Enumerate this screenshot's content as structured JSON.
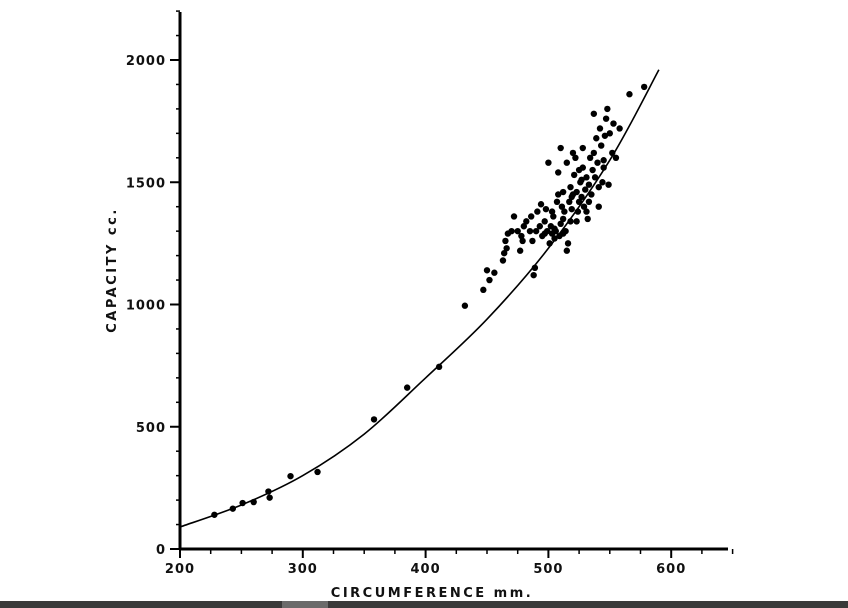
{
  "chart_data": {
    "type": "scatter",
    "xlabel": "CIRCUMFERENCE mm.",
    "ylabel": "CAPACITY cc.",
    "xlim": [
      200,
      650
    ],
    "ylim": [
      0,
      2200
    ],
    "x_ticks": [
      200,
      300,
      400,
      500,
      600
    ],
    "y_ticks": [
      0,
      500,
      1000,
      1500,
      2000
    ],
    "grid": false,
    "curve": {
      "x": [
        200,
        250,
        300,
        350,
        400,
        450,
        500,
        550,
        590
      ],
      "y": [
        90,
        180,
        300,
        470,
        700,
        940,
        1230,
        1590,
        1960
      ]
    },
    "points": [
      [
        228,
        140
      ],
      [
        243,
        165
      ],
      [
        251,
        188
      ],
      [
        260,
        192
      ],
      [
        272,
        235
      ],
      [
        273,
        210
      ],
      [
        290,
        298
      ],
      [
        312,
        315
      ],
      [
        358,
        530
      ],
      [
        385,
        660
      ],
      [
        411,
        745
      ],
      [
        432,
        995
      ],
      [
        447,
        1060
      ],
      [
        450,
        1140
      ],
      [
        452,
        1100
      ],
      [
        456,
        1130
      ],
      [
        463,
        1180
      ],
      [
        464,
        1210
      ],
      [
        465,
        1260
      ],
      [
        466,
        1230
      ],
      [
        467,
        1290
      ],
      [
        470,
        1300
      ],
      [
        472,
        1360
      ],
      [
        475,
        1300
      ],
      [
        477,
        1220
      ],
      [
        479,
        1260
      ],
      [
        480,
        1320
      ],
      [
        482,
        1340
      ],
      [
        485,
        1300
      ],
      [
        487,
        1260
      ],
      [
        488,
        1120
      ],
      [
        489,
        1150
      ],
      [
        490,
        1300
      ],
      [
        491,
        1380
      ],
      [
        494,
        1410
      ],
      [
        495,
        1280
      ],
      [
        497,
        1340
      ],
      [
        498,
        1390
      ],
      [
        499,
        1300
      ],
      [
        500,
        1580
      ],
      [
        501,
        1250
      ],
      [
        502,
        1320
      ],
      [
        503,
        1290
      ],
      [
        504,
        1360
      ],
      [
        505,
        1270
      ],
      [
        506,
        1300
      ],
      [
        507,
        1420
      ],
      [
        508,
        1450
      ],
      [
        509,
        1280
      ],
      [
        510,
        1330
      ],
      [
        511,
        1400
      ],
      [
        512,
        1350
      ],
      [
        513,
        1380
      ],
      [
        514,
        1300
      ],
      [
        515,
        1220
      ],
      [
        516,
        1250
      ],
      [
        517,
        1420
      ],
      [
        518,
        1480
      ],
      [
        519,
        1390
      ],
      [
        520,
        1450
      ],
      [
        521,
        1530
      ],
      [
        522,
        1600
      ],
      [
        523,
        1460
      ],
      [
        524,
        1380
      ],
      [
        525,
        1420
      ],
      [
        526,
        1500
      ],
      [
        527,
        1440
      ],
      [
        528,
        1560
      ],
      [
        529,
        1400
      ],
      [
        530,
        1470
      ],
      [
        531,
        1520
      ],
      [
        532,
        1350
      ],
      [
        533,
        1490
      ],
      [
        534,
        1600
      ],
      [
        535,
        1450
      ],
      [
        536,
        1550
      ],
      [
        537,
        1620
      ],
      [
        538,
        1520
      ],
      [
        539,
        1680
      ],
      [
        540,
        1580
      ],
      [
        541,
        1480
      ],
      [
        542,
        1720
      ],
      [
        543,
        1650
      ],
      [
        544,
        1500
      ],
      [
        545,
        1590
      ],
      [
        546,
        1690
      ],
      [
        547,
        1760
      ],
      [
        548,
        1800
      ],
      [
        550,
        1700
      ],
      [
        552,
        1620
      ],
      [
        553,
        1740
      ],
      [
        555,
        1600
      ],
      [
        558,
        1720
      ],
      [
        566,
        1860
      ],
      [
        578,
        1890
      ],
      [
        510,
        1640
      ],
      [
        515,
        1580
      ],
      [
        520,
        1620
      ],
      [
        528,
        1640
      ],
      [
        523,
        1340
      ],
      [
        508,
        1540
      ],
      [
        537,
        1780
      ],
      [
        541,
        1400
      ],
      [
        519,
        1440
      ],
      [
        531,
        1380
      ],
      [
        512,
        1460
      ],
      [
        503,
        1380
      ],
      [
        497,
        1290
      ],
      [
        493,
        1320
      ],
      [
        486,
        1360
      ],
      [
        478,
        1280
      ],
      [
        525,
        1550
      ],
      [
        533,
        1420
      ],
      [
        545,
        1560
      ],
      [
        549,
        1490
      ],
      [
        527,
        1510
      ],
      [
        505,
        1310
      ],
      [
        512,
        1290
      ],
      [
        518,
        1340
      ]
    ]
  }
}
